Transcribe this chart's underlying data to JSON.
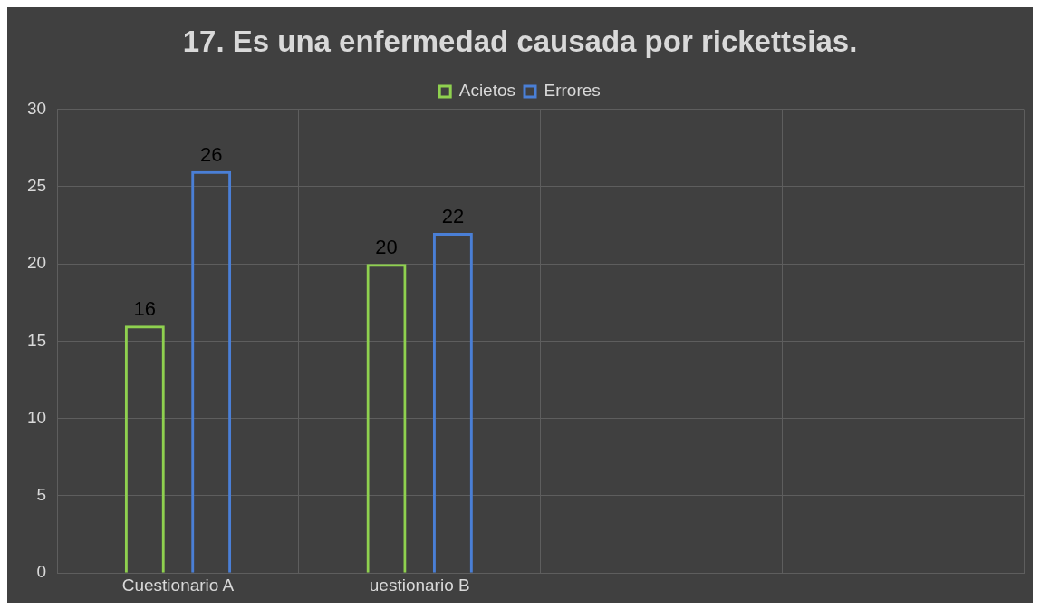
{
  "chart_data": {
    "type": "bar",
    "title": "17. Es una enfermedad causada por rickettsias.",
    "categories": [
      "Cuestionario A",
      "uestionario B",
      null,
      null
    ],
    "series": [
      {
        "name": "Acietos",
        "color": "#8fd14f",
        "values": [
          16,
          20,
          null,
          null
        ]
      },
      {
        "name": "Errores",
        "color": "#4a7fd6",
        "values": [
          26,
          22,
          null,
          null
        ]
      }
    ],
    "ylim": [
      0,
      30
    ],
    "yticks": [
      0,
      5,
      10,
      15,
      20,
      25,
      30
    ],
    "grid": true,
    "legend": "top",
    "data_labels": true
  }
}
